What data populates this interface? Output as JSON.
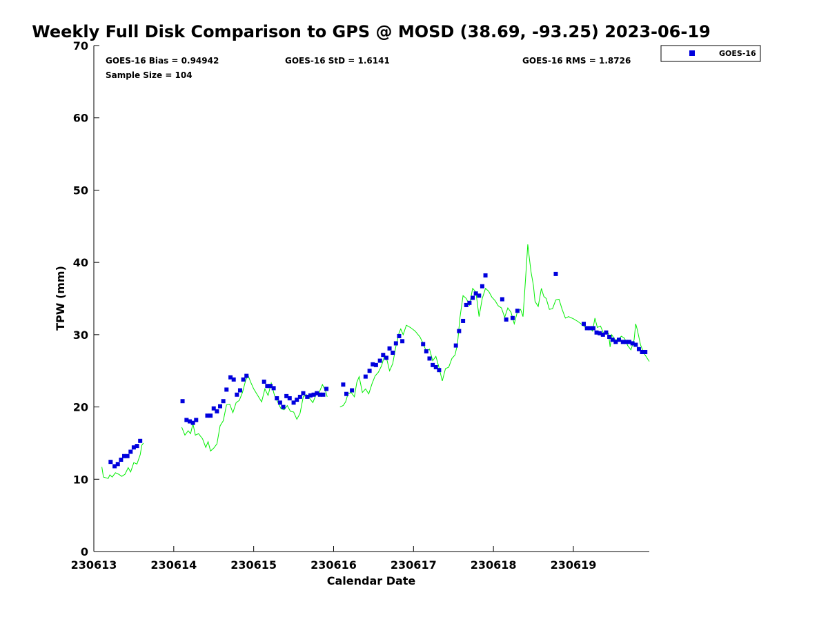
{
  "chart_data": {
    "type": "scatter",
    "title": "Weekly Full Disk Comparison to GPS @ MOSD (38.69, -93.25) 2023-06-19",
    "xlabel": "Calendar Date",
    "ylabel": "TPW (mm)",
    "xlim": [
      0,
      6.95
    ],
    "ylim": [
      0,
      70
    ],
    "x_ticks": [
      0,
      1,
      2,
      3,
      4,
      5,
      6
    ],
    "x_tick_labels": [
      "230613",
      "230614",
      "230615",
      "230616",
      "230617",
      "230618",
      "230619"
    ],
    "y_ticks": [
      0,
      10,
      20,
      30,
      40,
      50,
      60,
      70
    ],
    "y_tick_labels": [
      "0",
      "10",
      "20",
      "30",
      "40",
      "50",
      "60",
      "70"
    ],
    "stats": {
      "bias": "GOES-16 Bias = 0.94942",
      "std": "GOES-16 StD = 1.6141",
      "rms": "GOES-16 RMS = 1.8726",
      "sample": "Sample Size = 104"
    },
    "legend": {
      "label": "GOES-16",
      "location": "top-right outside"
    },
    "series": [
      {
        "name": "GOES-16",
        "marker": "square",
        "color": "#0000dd",
        "points": [
          [
            0.21,
            12.4
          ],
          [
            0.26,
            11.8
          ],
          [
            0.3,
            12.1
          ],
          [
            0.34,
            12.7
          ],
          [
            0.38,
            13.2
          ],
          [
            0.42,
            13.2
          ],
          [
            0.46,
            13.8
          ],
          [
            0.5,
            14.4
          ],
          [
            0.54,
            14.6
          ],
          [
            0.58,
            15.3
          ],
          [
            1.11,
            20.8
          ],
          [
            1.16,
            18.2
          ],
          [
            1.2,
            18.0
          ],
          [
            1.24,
            17.8
          ],
          [
            1.28,
            18.2
          ],
          [
            1.42,
            18.8
          ],
          [
            1.46,
            18.8
          ],
          [
            1.5,
            19.8
          ],
          [
            1.54,
            19.4
          ],
          [
            1.58,
            20.1
          ],
          [
            1.62,
            20.8
          ],
          [
            1.66,
            22.4
          ],
          [
            1.71,
            24.1
          ],
          [
            1.75,
            23.8
          ],
          [
            1.79,
            21.7
          ],
          [
            1.83,
            22.3
          ],
          [
            1.87,
            23.8
          ],
          [
            1.91,
            24.3
          ],
          [
            2.13,
            23.5
          ],
          [
            2.17,
            22.9
          ],
          [
            2.21,
            22.9
          ],
          [
            2.25,
            22.6
          ],
          [
            2.29,
            21.2
          ],
          [
            2.33,
            20.6
          ],
          [
            2.37,
            20.0
          ],
          [
            2.41,
            21.5
          ],
          [
            2.45,
            21.2
          ],
          [
            2.5,
            20.6
          ],
          [
            2.54,
            21.0
          ],
          [
            2.58,
            21.4
          ],
          [
            2.62,
            21.9
          ],
          [
            2.67,
            21.4
          ],
          [
            2.71,
            21.6
          ],
          [
            2.75,
            21.7
          ],
          [
            2.79,
            21.9
          ],
          [
            2.83,
            21.7
          ],
          [
            2.87,
            21.7
          ],
          [
            2.91,
            22.5
          ],
          [
            3.12,
            23.1
          ],
          [
            3.16,
            21.8
          ],
          [
            3.23,
            22.3
          ],
          [
            3.4,
            24.2
          ],
          [
            3.45,
            25.0
          ],
          [
            3.49,
            25.9
          ],
          [
            3.53,
            25.8
          ],
          [
            3.58,
            26.4
          ],
          [
            3.62,
            27.2
          ],
          [
            3.66,
            26.8
          ],
          [
            3.7,
            28.1
          ],
          [
            3.74,
            27.5
          ],
          [
            3.78,
            28.8
          ],
          [
            3.82,
            29.8
          ],
          [
            3.86,
            29.1
          ],
          [
            4.12,
            28.7
          ],
          [
            4.16,
            27.7
          ],
          [
            4.2,
            26.7
          ],
          [
            4.24,
            25.8
          ],
          [
            4.28,
            25.5
          ],
          [
            4.32,
            25.1
          ],
          [
            4.53,
            28.5
          ],
          [
            4.57,
            30.5
          ],
          [
            4.62,
            31.9
          ],
          [
            4.66,
            34.1
          ],
          [
            4.7,
            34.4
          ],
          [
            4.74,
            35.1
          ],
          [
            4.78,
            35.7
          ],
          [
            4.82,
            35.4
          ],
          [
            4.86,
            36.7
          ],
          [
            4.9,
            38.2
          ],
          [
            5.11,
            34.9
          ],
          [
            5.16,
            32.1
          ],
          [
            5.24,
            32.3
          ],
          [
            5.3,
            33.3
          ],
          [
            5.78,
            38.4
          ],
          [
            6.13,
            31.5
          ],
          [
            6.17,
            30.9
          ],
          [
            6.21,
            30.9
          ],
          [
            6.25,
            30.9
          ],
          [
            6.29,
            30.3
          ],
          [
            6.33,
            30.2
          ],
          [
            6.37,
            30.0
          ],
          [
            6.41,
            30.3
          ],
          [
            6.45,
            29.7
          ],
          [
            6.49,
            29.3
          ],
          [
            6.53,
            29.0
          ],
          [
            6.57,
            29.3
          ],
          [
            6.62,
            29.0
          ],
          [
            6.66,
            29.0
          ],
          [
            6.7,
            29.0
          ],
          [
            6.74,
            28.8
          ],
          [
            6.78,
            28.6
          ],
          [
            6.82,
            28.0
          ],
          [
            6.86,
            27.6
          ],
          [
            6.9,
            27.6
          ]
        ]
      },
      {
        "name": "GPS",
        "marker": "line",
        "color": "#00ee00",
        "points": [
          [
            0.1,
            11.7
          ],
          [
            0.12,
            10.3
          ],
          [
            0.18,
            10.1
          ],
          [
            0.2,
            10.6
          ],
          [
            0.23,
            10.3
          ],
          [
            0.27,
            10.9
          ],
          [
            0.31,
            10.7
          ],
          [
            0.35,
            10.4
          ],
          [
            0.39,
            10.7
          ],
          [
            0.43,
            11.6
          ],
          [
            0.46,
            11.0
          ],
          [
            0.5,
            12.3
          ],
          [
            0.54,
            12.1
          ],
          [
            0.58,
            13.4
          ],
          [
            0.6,
            14.7
          ],
          [
            0.62,
            15.0
          ],
          [
            1.1,
            17.2
          ],
          [
            1.14,
            16.1
          ],
          [
            1.18,
            16.7
          ],
          [
            1.21,
            16.3
          ],
          [
            1.24,
            17.7
          ],
          [
            1.27,
            16.1
          ],
          [
            1.31,
            16.3
          ],
          [
            1.36,
            15.6
          ],
          [
            1.4,
            14.4
          ],
          [
            1.43,
            15.2
          ],
          [
            1.46,
            13.9
          ],
          [
            1.5,
            14.3
          ],
          [
            1.54,
            14.9
          ],
          [
            1.58,
            17.4
          ],
          [
            1.62,
            18.1
          ],
          [
            1.66,
            20.3
          ],
          [
            1.7,
            20.4
          ],
          [
            1.74,
            19.2
          ],
          [
            1.78,
            20.6
          ],
          [
            1.82,
            20.9
          ],
          [
            1.86,
            22.0
          ],
          [
            1.9,
            23.7
          ],
          [
            1.93,
            24.4
          ],
          [
            1.96,
            23.5
          ],
          [
            2.0,
            22.5
          ],
          [
            2.1,
            20.7
          ],
          [
            2.14,
            22.5
          ],
          [
            2.18,
            21.6
          ],
          [
            2.22,
            23.3
          ],
          [
            2.26,
            21.6
          ],
          [
            2.3,
            20.7
          ],
          [
            2.34,
            19.8
          ],
          [
            2.38,
            19.6
          ],
          [
            2.42,
            20.2
          ],
          [
            2.46,
            19.4
          ],
          [
            2.5,
            19.3
          ],
          [
            2.54,
            18.3
          ],
          [
            2.58,
            19.1
          ],
          [
            2.62,
            21.4
          ],
          [
            2.66,
            21.7
          ],
          [
            2.7,
            21.2
          ],
          [
            2.74,
            20.6
          ],
          [
            2.78,
            21.7
          ],
          [
            2.82,
            22.0
          ],
          [
            2.86,
            23.1
          ],
          [
            2.9,
            22.2
          ],
          [
            2.92,
            21.4
          ],
          [
            3.08,
            20.0
          ],
          [
            3.12,
            20.2
          ],
          [
            3.15,
            20.7
          ],
          [
            3.18,
            21.8
          ],
          [
            3.22,
            22.0
          ],
          [
            3.26,
            21.4
          ],
          [
            3.29,
            23.4
          ],
          [
            3.32,
            24.2
          ],
          [
            3.36,
            22.0
          ],
          [
            3.4,
            22.5
          ],
          [
            3.44,
            21.8
          ],
          [
            3.48,
            23.2
          ],
          [
            3.52,
            24.3
          ],
          [
            3.56,
            24.8
          ],
          [
            3.6,
            25.7
          ],
          [
            3.64,
            27.2
          ],
          [
            3.67,
            26.4
          ],
          [
            3.7,
            25.0
          ],
          [
            3.74,
            26.0
          ],
          [
            3.78,
            28.4
          ],
          [
            3.82,
            30.3
          ],
          [
            3.84,
            30.8
          ],
          [
            3.87,
            30.0
          ],
          [
            3.91,
            31.3
          ],
          [
            3.96,
            31.0
          ],
          [
            4.02,
            30.5
          ],
          [
            4.08,
            29.7
          ],
          [
            4.12,
            28.8
          ],
          [
            4.16,
            27.7
          ],
          [
            4.2,
            28.0
          ],
          [
            4.24,
            26.4
          ],
          [
            4.28,
            27.0
          ],
          [
            4.32,
            25.4
          ],
          [
            4.36,
            23.6
          ],
          [
            4.4,
            25.3
          ],
          [
            4.44,
            25.5
          ],
          [
            4.48,
            26.7
          ],
          [
            4.52,
            27.2
          ],
          [
            4.55,
            28.7
          ],
          [
            4.58,
            32.3
          ],
          [
            4.62,
            35.4
          ],
          [
            4.66,
            35.0
          ],
          [
            4.7,
            34.1
          ],
          [
            4.74,
            36.4
          ],
          [
            4.78,
            35.9
          ],
          [
            4.82,
            32.5
          ],
          [
            4.86,
            35.0
          ],
          [
            4.9,
            36.4
          ],
          [
            4.94,
            36.0
          ],
          [
            4.98,
            35.2
          ],
          [
            5.02,
            34.7
          ],
          [
            5.06,
            34.0
          ],
          [
            5.1,
            33.7
          ],
          [
            5.14,
            32.4
          ],
          [
            5.18,
            33.7
          ],
          [
            5.22,
            33.1
          ],
          [
            5.26,
            31.5
          ],
          [
            5.3,
            33.2
          ],
          [
            5.34,
            33.5
          ],
          [
            5.37,
            32.5
          ],
          [
            5.4,
            37.5
          ],
          [
            5.43,
            42.5
          ],
          [
            5.45,
            40.5
          ],
          [
            5.47,
            38.7
          ],
          [
            5.5,
            36.8
          ],
          [
            5.52,
            34.6
          ],
          [
            5.56,
            33.9
          ],
          [
            5.6,
            36.4
          ],
          [
            5.63,
            35.3
          ],
          [
            5.66,
            35.0
          ],
          [
            5.7,
            33.5
          ],
          [
            5.74,
            33.6
          ],
          [
            5.78,
            34.8
          ],
          [
            5.82,
            34.9
          ],
          [
            5.86,
            33.5
          ],
          [
            5.9,
            32.3
          ],
          [
            5.94,
            32.5
          ],
          [
            6.0,
            32.2
          ],
          [
            6.06,
            31.8
          ],
          [
            6.12,
            31.3
          ],
          [
            6.16,
            30.9
          ],
          [
            6.2,
            31.0
          ],
          [
            6.24,
            30.5
          ],
          [
            6.27,
            32.3
          ],
          [
            6.3,
            31.0
          ],
          [
            6.34,
            31.2
          ],
          [
            6.38,
            30.1
          ],
          [
            6.41,
            30.4
          ],
          [
            6.44,
            30.2
          ],
          [
            6.46,
            28.3
          ],
          [
            6.48,
            30.0
          ],
          [
            6.52,
            29.3
          ],
          [
            6.56,
            29.3
          ],
          [
            6.6,
            29.8
          ],
          [
            6.64,
            29.5
          ],
          [
            6.68,
            28.5
          ],
          [
            6.72,
            27.9
          ],
          [
            6.76,
            29.3
          ],
          [
            6.78,
            31.5
          ],
          [
            6.8,
            30.7
          ],
          [
            6.84,
            28.6
          ],
          [
            6.88,
            27.5
          ],
          [
            6.92,
            26.8
          ],
          [
            6.95,
            26.3
          ]
        ]
      }
    ]
  }
}
